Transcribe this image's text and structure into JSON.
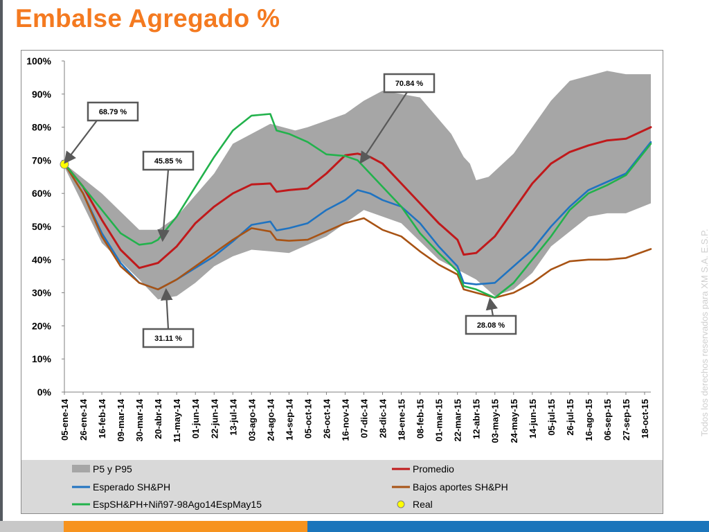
{
  "page": {
    "title": "Embalse Agregado %",
    "watermark": "Todos los derechos reservados para XM S.A. E.S.P."
  },
  "colors": {
    "title": "#f47a20",
    "band": "#a6a6a6",
    "promedio": "#c0191b",
    "esperado": "#1f73c1",
    "bajos": "#a85314",
    "nino": "#22b24c",
    "real": "#ffff00",
    "bar_orange": "#f7931e",
    "bar_blue": "#1b75bb",
    "bar_gray": "#c8c8c8"
  },
  "chart_data": {
    "type": "line",
    "title": "Embalse Agregado %",
    "xlabel": "",
    "ylabel": "",
    "ylim": [
      0,
      100
    ],
    "ytick_labels": [
      "0%",
      "10%",
      "20%",
      "30%",
      "40%",
      "50%",
      "60%",
      "70%",
      "80%",
      "90%",
      "100%"
    ],
    "x_tick_labels": [
      "05-ene-14",
      "26-ene-14",
      "16-feb-14",
      "09-mar-14",
      "30-mar-14",
      "20-abr-14",
      "11-may-14",
      "01-jun-14",
      "22-jun-14",
      "13-jul-14",
      "03-ago-14",
      "24-ago-14",
      "14-sep-14",
      "05-oct-14",
      "26-oct-14",
      "16-nov-14",
      "07-dic-14",
      "28-dic-14",
      "18-ene-15",
      "08-feb-15",
      "01-mar-15",
      "22-mar-15",
      "12-abr-15",
      "03-may-15",
      "24-may-15",
      "14-jun-15",
      "05-jul-15",
      "26-jul-15",
      "16-ago-15",
      "06-sep-15",
      "27-sep-15",
      "18-oct-15"
    ],
    "x_weeks_per_tick": 3,
    "x_index_max": 94,
    "series": [
      {
        "name": "P5 y P95",
        "kind": "band",
        "color": "#a6a6a6",
        "upper": [
          [
            0,
            69
          ],
          [
            6,
            60
          ],
          [
            12,
            49
          ],
          [
            15,
            49
          ],
          [
            18,
            53
          ],
          [
            24,
            66
          ],
          [
            27,
            75
          ],
          [
            33,
            81
          ],
          [
            37,
            79
          ],
          [
            39,
            80
          ],
          [
            45,
            84
          ],
          [
            48,
            88
          ],
          [
            51,
            91
          ],
          [
            57,
            89
          ],
          [
            62,
            78
          ],
          [
            64,
            71
          ],
          [
            65,
            69
          ],
          [
            66,
            64
          ],
          [
            68,
            65
          ],
          [
            72,
            72
          ],
          [
            75,
            80
          ],
          [
            78,
            88
          ],
          [
            81,
            94
          ],
          [
            87,
            97
          ],
          [
            90,
            96
          ],
          [
            94,
            96
          ]
        ],
        "lower": [
          [
            0,
            68
          ],
          [
            6,
            45
          ],
          [
            12,
            34
          ],
          [
            15,
            28
          ],
          [
            18,
            29
          ],
          [
            21,
            33
          ],
          [
            24,
            38
          ],
          [
            27,
            41
          ],
          [
            30,
            43
          ],
          [
            36,
            42
          ],
          [
            42,
            47
          ],
          [
            48,
            55
          ],
          [
            54,
            51
          ],
          [
            60,
            40
          ],
          [
            66,
            34
          ],
          [
            69,
            29
          ],
          [
            72,
            31
          ],
          [
            75,
            36
          ],
          [
            78,
            44
          ],
          [
            84,
            53
          ],
          [
            87,
            54
          ],
          [
            90,
            54
          ],
          [
            94,
            57
          ]
        ]
      },
      {
        "name": "Promedio",
        "color": "#c0191b",
        "points": [
          [
            0,
            69
          ],
          [
            3,
            62
          ],
          [
            6,
            52
          ],
          [
            9,
            43
          ],
          [
            12,
            37.5
          ],
          [
            15,
            39
          ],
          [
            18,
            44
          ],
          [
            21,
            51
          ],
          [
            24,
            56
          ],
          [
            27,
            60
          ],
          [
            30,
            62.7
          ],
          [
            33,
            63
          ],
          [
            34,
            60.5
          ],
          [
            36,
            61
          ],
          [
            39,
            61.5
          ],
          [
            42,
            66
          ],
          [
            45,
            71.5
          ],
          [
            47,
            72
          ],
          [
            49,
            71
          ],
          [
            51,
            69
          ],
          [
            54,
            63
          ],
          [
            57,
            57
          ],
          [
            60,
            51
          ],
          [
            63,
            46
          ],
          [
            64,
            41.5
          ],
          [
            66,
            42
          ],
          [
            69,
            47
          ],
          [
            72,
            55
          ],
          [
            75,
            63
          ],
          [
            78,
            69
          ],
          [
            81,
            72.5
          ],
          [
            84,
            74.5
          ],
          [
            87,
            76
          ],
          [
            90,
            76.5
          ],
          [
            94,
            80
          ]
        ]
      },
      {
        "name": "Esperado SH&PH",
        "color": "#1f73c1",
        "points": [
          [
            0,
            69
          ],
          [
            3,
            60
          ],
          [
            6,
            48
          ],
          [
            9,
            39
          ],
          [
            12,
            33
          ],
          [
            15,
            31
          ],
          [
            18,
            34
          ],
          [
            21,
            37.5
          ],
          [
            24,
            41
          ],
          [
            27,
            45.5
          ],
          [
            30,
            50.5
          ],
          [
            33,
            51.5
          ],
          [
            34,
            48.8
          ],
          [
            36,
            49.5
          ],
          [
            39,
            51
          ],
          [
            42,
            55
          ],
          [
            45,
            58
          ],
          [
            47,
            61
          ],
          [
            49,
            60
          ],
          [
            51,
            58
          ],
          [
            54,
            56
          ],
          [
            57,
            51
          ],
          [
            60,
            44
          ],
          [
            63,
            38
          ],
          [
            64,
            33
          ],
          [
            66,
            32.5
          ],
          [
            69,
            33
          ],
          [
            72,
            38
          ],
          [
            75,
            43
          ],
          [
            78,
            50
          ],
          [
            81,
            56
          ],
          [
            84,
            61
          ],
          [
            87,
            63.5
          ],
          [
            90,
            66
          ],
          [
            94,
            75.5
          ]
        ]
      },
      {
        "name": "Bajos aportes SH&PH",
        "color": "#a85314",
        "points": [
          [
            0,
            69
          ],
          [
            3,
            60
          ],
          [
            6,
            47
          ],
          [
            9,
            38
          ],
          [
            12,
            33
          ],
          [
            15,
            31
          ],
          [
            18,
            34
          ],
          [
            21,
            38
          ],
          [
            24,
            42
          ],
          [
            27,
            46
          ],
          [
            30,
            49.5
          ],
          [
            33,
            48.5
          ],
          [
            34,
            46
          ],
          [
            36,
            45.7
          ],
          [
            39,
            46
          ],
          [
            42,
            48.5
          ],
          [
            45,
            51
          ],
          [
            48,
            52.5
          ],
          [
            51,
            49
          ],
          [
            54,
            47
          ],
          [
            57,
            42.5
          ],
          [
            60,
            38.5
          ],
          [
            63,
            35.5
          ],
          [
            64,
            31
          ],
          [
            66,
            30
          ],
          [
            69,
            28.5
          ],
          [
            72,
            30
          ],
          [
            75,
            33
          ],
          [
            78,
            37
          ],
          [
            81,
            39.5
          ],
          [
            84,
            40
          ],
          [
            87,
            40
          ],
          [
            90,
            40.5
          ],
          [
            94,
            43.2
          ]
        ]
      },
      {
        "name": "EspSH&PH+Niñ97-98Ago14EspMay15",
        "color": "#22b24c",
        "points": [
          [
            0,
            69
          ],
          [
            3,
            62
          ],
          [
            6,
            55
          ],
          [
            9,
            48
          ],
          [
            12,
            44.5
          ],
          [
            14,
            45
          ],
          [
            15,
            46
          ],
          [
            18,
            53
          ],
          [
            21,
            62
          ],
          [
            24,
            71
          ],
          [
            27,
            79
          ],
          [
            30,
            83.5
          ],
          [
            33,
            84
          ],
          [
            34,
            79
          ],
          [
            36,
            78
          ],
          [
            39,
            75.5
          ],
          [
            42,
            71.8
          ],
          [
            45,
            71.3
          ],
          [
            47,
            70
          ],
          [
            49,
            66
          ],
          [
            51,
            62
          ],
          [
            54,
            56
          ],
          [
            57,
            48
          ],
          [
            60,
            42
          ],
          [
            63,
            36.5
          ],
          [
            64,
            32
          ],
          [
            66,
            31
          ],
          [
            69,
            28.5
          ],
          [
            72,
            33
          ],
          [
            75,
            40
          ],
          [
            78,
            47
          ],
          [
            81,
            55
          ],
          [
            84,
            60
          ],
          [
            87,
            62.5
          ],
          [
            90,
            65.5
          ],
          [
            94,
            75
          ]
        ]
      },
      {
        "name": "Real",
        "kind": "marker",
        "color": "#ffff00",
        "points": [
          [
            0,
            68.79
          ]
        ]
      }
    ],
    "annotations": [
      {
        "text": "68.79 %",
        "x": 0,
        "y": 68.79
      },
      {
        "text": "45.85 %",
        "x": 14,
        "y": 45.85
      },
      {
        "text": "31.11 %",
        "x": 15,
        "y": 31.11
      },
      {
        "text": "70.84 %",
        "x": 45,
        "y": 70.84
      },
      {
        "text": "28.08 %",
        "x": 69,
        "y": 28.08
      }
    ],
    "legend": {
      "placement": "bottom",
      "entries": [
        {
          "name": "P5 y P95",
          "kind": "band",
          "color": "#a6a6a6"
        },
        {
          "name": "Promedio",
          "kind": "line",
          "color": "#c0191b"
        },
        {
          "name": "Esperado SH&PH",
          "kind": "line",
          "color": "#1f73c1"
        },
        {
          "name": "Bajos aportes SH&PH",
          "kind": "line",
          "color": "#a85314"
        },
        {
          "name": "EspSH&PH+Niñ97-98Ago14EspMay15",
          "kind": "line",
          "color": "#22b24c"
        },
        {
          "name": "Real",
          "kind": "marker",
          "color": "#ffff00"
        }
      ]
    },
    "grid": false
  }
}
